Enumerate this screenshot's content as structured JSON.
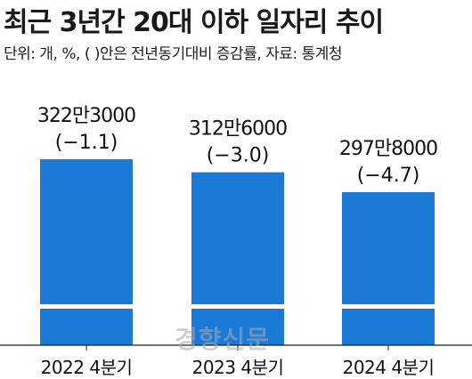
{
  "header": {
    "title": "최근 3년간 20대 이하 일자리 추이",
    "subtitle": "단위: 개, %, (   )안은 전년동기대비 증감률, 자료: 통계청"
  },
  "watermark": "경향신문",
  "colors": {
    "bar": "#1a7ad6",
    "axis": "#222222",
    "text": "#111111"
  },
  "chart_data": {
    "type": "bar",
    "categories": [
      "2022 4분기",
      "2023 4분기",
      "2024 4분기"
    ],
    "values": [
      3223000,
      3126000,
      2978000
    ],
    "value_labels": [
      "322만3000",
      "312만6000",
      "297만8000"
    ],
    "change_labels": [
      "(−1.1)",
      "(−3.0)",
      "(−4.7)"
    ],
    "change_pct": [
      -1.1,
      -3.0,
      -4.7
    ],
    "axis_break": true,
    "xlabel": "",
    "ylabel": "",
    "grid": false,
    "legend": "none"
  }
}
